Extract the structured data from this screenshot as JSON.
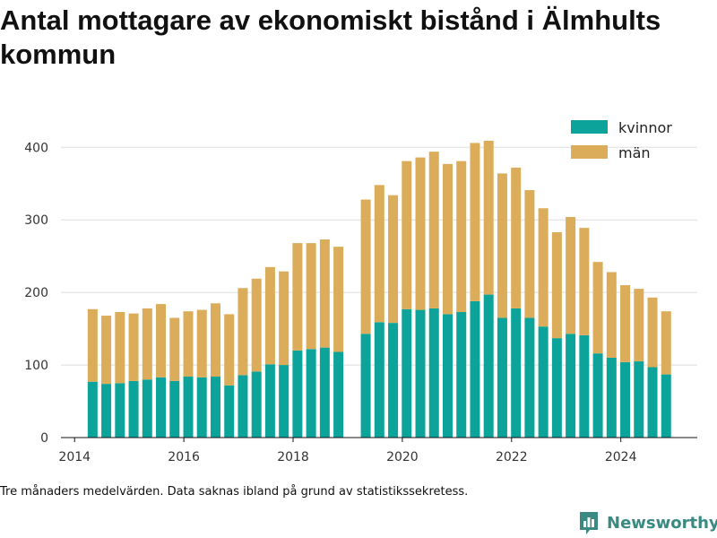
{
  "chart_data": {
    "type": "bar",
    "stacked": true,
    "title": "Antal mottagare av ekonomiskt bistånd i Älmhults kommun",
    "xlabel": "",
    "ylabel": "",
    "ylim": [
      0,
      430
    ],
    "yticks": [
      0,
      100,
      200,
      300,
      400
    ],
    "xlim": [
      2013.75,
      2025.4
    ],
    "xticks": [
      2014,
      2016,
      2018,
      2020,
      2022,
      2024
    ],
    "grid": "horizontal",
    "legend_position": "top-right",
    "x": [
      2014.33,
      2014.58,
      2014.83,
      2015.08,
      2015.33,
      2015.58,
      2015.83,
      2016.08,
      2016.33,
      2016.58,
      2016.83,
      2017.08,
      2017.33,
      2017.58,
      2017.83,
      2018.08,
      2018.33,
      2018.58,
      2018.83,
      2019.33,
      2019.58,
      2019.83,
      2020.08,
      2020.33,
      2020.58,
      2020.83,
      2021.08,
      2021.33,
      2021.58,
      2021.83,
      2022.08,
      2022.33,
      2022.58,
      2022.83,
      2023.08,
      2023.33,
      2023.58,
      2023.83,
      2024.08,
      2024.33,
      2024.58,
      2024.83
    ],
    "series": [
      {
        "name": "kvinnor",
        "color": "#0ca49a",
        "values": [
          77,
          74,
          75,
          78,
          80,
          83,
          78,
          84,
          83,
          84,
          72,
          86,
          91,
          101,
          100,
          120,
          122,
          124,
          118,
          143,
          159,
          158,
          177,
          176,
          178,
          170,
          173,
          188,
          197,
          165,
          178,
          165,
          153,
          137,
          143,
          141,
          116,
          110,
          104,
          105,
          97,
          87
        ]
      },
      {
        "name": "män",
        "color": "#dbad5a",
        "values": [
          100,
          94,
          98,
          93,
          98,
          101,
          87,
          90,
          93,
          101,
          98,
          120,
          128,
          134,
          129,
          148,
          146,
          149,
          145,
          185,
          189,
          176,
          204,
          210,
          216,
          207,
          208,
          218,
          212,
          199,
          194,
          176,
          163,
          146,
          161,
          148,
          126,
          118,
          106,
          100,
          96,
          87
        ]
      }
    ]
  },
  "footnote": "Tre månaders medelvärden. Data saknas ibland på grund av statistikssekretess.",
  "brand": {
    "name": "Newsworthy",
    "icon": "bar-chart-icon",
    "color": "#3a8a82"
  }
}
